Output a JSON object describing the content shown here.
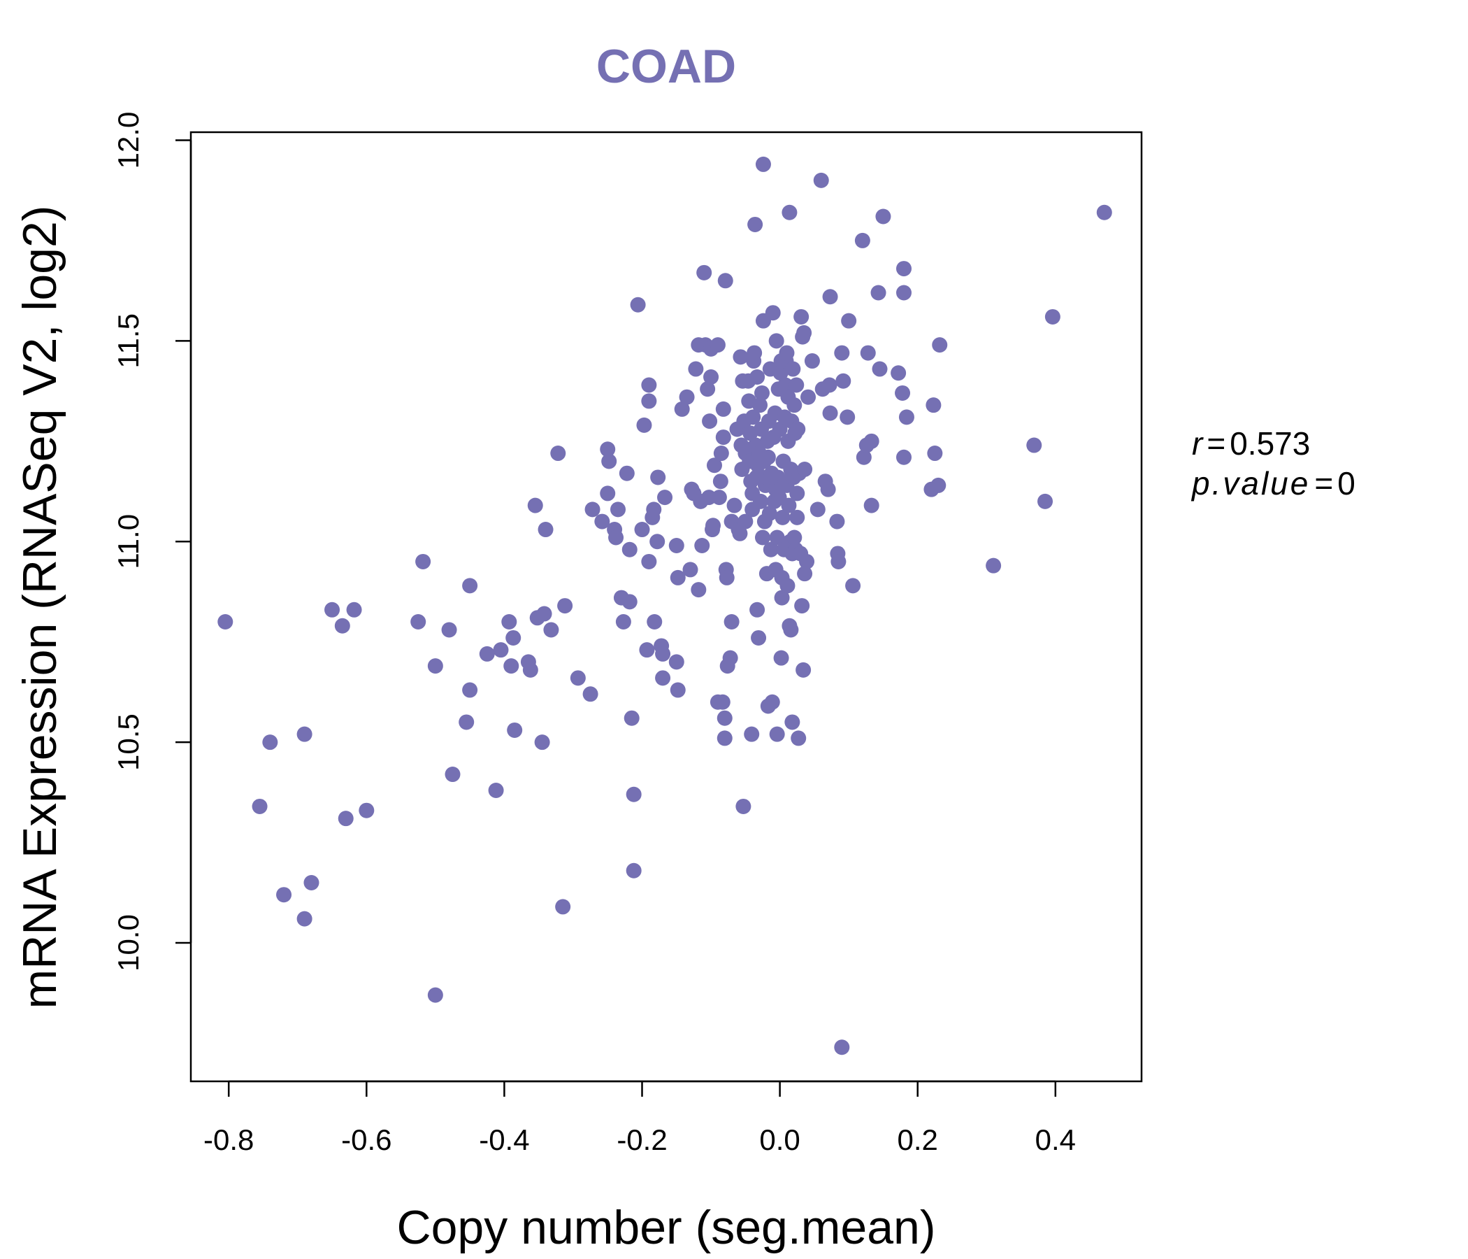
{
  "chart_data": {
    "type": "scatter",
    "title": "COAD",
    "xlabel": "Copy number (seg.mean)",
    "ylabel": "mRNA Expression (RNASeq V2, log2)",
    "xlim": [
      -0.855,
      0.525
    ],
    "ylim": [
      9.655,
      12.02
    ],
    "x_ticks": [
      -0.8,
      -0.6,
      -0.4,
      -0.2,
      0.0,
      0.2,
      0.4
    ],
    "x_tick_labels": [
      "-0.8",
      "-0.6",
      "-0.4",
      "-0.2",
      "0.0",
      "0.2",
      "0.4"
    ],
    "y_ticks": [
      10.0,
      10.5,
      11.0,
      11.5,
      12.0
    ],
    "y_tick_labels": [
      "10.0",
      "10.5",
      "11.0",
      "11.5",
      "12.0"
    ],
    "point_color": "#7570b3",
    "annotation": {
      "r_symbol": "r",
      "r_value": "0.573",
      "p_symbol": "p.value",
      "p_value": "0",
      "equals": "="
    },
    "points": [
      [
        -0.805,
        10.8
      ],
      [
        -0.755,
        10.34
      ],
      [
        -0.74,
        10.5
      ],
      [
        -0.72,
        10.12
      ],
      [
        -0.69,
        10.52
      ],
      [
        -0.69,
        10.06
      ],
      [
        -0.68,
        10.15
      ],
      [
        -0.65,
        10.83
      ],
      [
        -0.635,
        10.79
      ],
      [
        -0.63,
        10.31
      ],
      [
        -0.618,
        10.83
      ],
      [
        -0.6,
        10.33
      ],
      [
        -0.525,
        10.8
      ],
      [
        -0.518,
        10.95
      ],
      [
        -0.5,
        10.69
      ],
      [
        -0.5,
        9.87
      ],
      [
        -0.48,
        10.78
      ],
      [
        -0.475,
        10.42
      ],
      [
        -0.455,
        10.55
      ],
      [
        -0.45,
        10.63
      ],
      [
        -0.45,
        10.89
      ],
      [
        -0.425,
        10.72
      ],
      [
        -0.412,
        10.38
      ],
      [
        -0.405,
        10.73
      ],
      [
        -0.393,
        10.8
      ],
      [
        -0.39,
        10.69
      ],
      [
        -0.387,
        10.76
      ],
      [
        -0.385,
        10.53
      ],
      [
        -0.365,
        10.7
      ],
      [
        -0.362,
        10.68
      ],
      [
        -0.355,
        11.09
      ],
      [
        -0.352,
        10.81
      ],
      [
        -0.345,
        10.5
      ],
      [
        -0.342,
        10.82
      ],
      [
        -0.34,
        11.03
      ],
      [
        -0.332,
        10.78
      ],
      [
        -0.322,
        11.22
      ],
      [
        -0.315,
        10.09
      ],
      [
        -0.312,
        10.84
      ],
      [
        -0.293,
        10.66
      ],
      [
        -0.275,
        10.62
      ],
      [
        -0.272,
        11.08
      ],
      [
        -0.258,
        11.05
      ],
      [
        -0.25,
        11.23
      ],
      [
        -0.25,
        11.12
      ],
      [
        -0.248,
        11.2
      ],
      [
        -0.24,
        11.03
      ],
      [
        -0.238,
        11.01
      ],
      [
        -0.235,
        11.08
      ],
      [
        -0.23,
        10.86
      ],
      [
        -0.227,
        10.8
      ],
      [
        -0.222,
        11.17
      ],
      [
        -0.218,
        10.98
      ],
      [
        -0.218,
        10.85
      ],
      [
        -0.215,
        10.56
      ],
      [
        -0.212,
        10.37
      ],
      [
        -0.212,
        10.18
      ],
      [
        -0.206,
        11.59
      ],
      [
        -0.2,
        11.03
      ],
      [
        -0.197,
        11.29
      ],
      [
        -0.193,
        10.73
      ],
      [
        -0.19,
        11.39
      ],
      [
        -0.19,
        11.35
      ],
      [
        -0.19,
        10.95
      ],
      [
        -0.185,
        11.06
      ],
      [
        -0.183,
        11.08
      ],
      [
        -0.182,
        10.8
      ],
      [
        -0.178,
        11.0
      ],
      [
        -0.177,
        11.16
      ],
      [
        -0.172,
        10.74
      ],
      [
        -0.17,
        10.66
      ],
      [
        -0.17,
        10.72
      ],
      [
        -0.167,
        11.11
      ],
      [
        -0.15,
        10.7
      ],
      [
        -0.15,
        10.99
      ],
      [
        -0.148,
        10.63
      ],
      [
        -0.148,
        10.91
      ],
      [
        -0.142,
        11.33
      ],
      [
        -0.135,
        11.36
      ],
      [
        -0.13,
        10.93
      ],
      [
        -0.128,
        11.13
      ],
      [
        -0.125,
        11.12
      ],
      [
        -0.122,
        11.43
      ],
      [
        -0.118,
        11.49
      ],
      [
        -0.118,
        10.88
      ],
      [
        -0.115,
        11.1
      ],
      [
        -0.113,
        10.99
      ],
      [
        -0.11,
        11.67
      ],
      [
        -0.108,
        11.49
      ],
      [
        -0.105,
        11.38
      ],
      [
        -0.103,
        11.11
      ],
      [
        -0.102,
        11.3
      ],
      [
        -0.1,
        11.41
      ],
      [
        -0.1,
        11.48
      ],
      [
        -0.098,
        11.03
      ],
      [
        -0.097,
        11.04
      ],
      [
        -0.095,
        11.19
      ],
      [
        -0.09,
        10.6
      ],
      [
        -0.09,
        11.49
      ],
      [
        -0.088,
        11.11
      ],
      [
        -0.086,
        11.15
      ],
      [
        -0.085,
        11.22
      ],
      [
        -0.083,
        10.6
      ],
      [
        -0.082,
        11.33
      ],
      [
        -0.082,
        11.26
      ],
      [
        -0.08,
        10.56
      ],
      [
        -0.08,
        10.51
      ],
      [
        -0.079,
        11.65
      ],
      [
        -0.078,
        10.93
      ],
      [
        -0.077,
        10.91
      ],
      [
        -0.076,
        10.69
      ],
      [
        -0.072,
        10.71
      ],
      [
        -0.07,
        10.8
      ],
      [
        -0.07,
        11.05
      ],
      [
        -0.066,
        11.09
      ],
      [
        -0.062,
        11.28
      ],
      [
        -0.06,
        11.03
      ],
      [
        -0.058,
        11.02
      ],
      [
        -0.057,
        11.46
      ],
      [
        -0.056,
        11.24
      ],
      [
        -0.055,
        11.18
      ],
      [
        -0.054,
        11.4
      ],
      [
        -0.053,
        10.34
      ],
      [
        -0.052,
        11.3
      ],
      [
        -0.05,
        11.22
      ],
      [
        -0.05,
        11.05
      ],
      [
        -0.048,
        11.23
      ],
      [
        -0.046,
        11.4
      ],
      [
        -0.045,
        11.35
      ],
      [
        -0.044,
        11.2
      ],
      [
        -0.043,
        11.27
      ],
      [
        -0.042,
        11.15
      ],
      [
        -0.041,
        10.52
      ],
      [
        -0.04,
        11.12
      ],
      [
        -0.04,
        11.08
      ],
      [
        -0.039,
        11.31
      ],
      [
        -0.038,
        11.45
      ],
      [
        -0.037,
        11.47
      ],
      [
        -0.036,
        11.79
      ],
      [
        -0.035,
        11.24
      ],
      [
        -0.034,
        11.16
      ],
      [
        -0.033,
        11.41
      ],
      [
        -0.033,
        10.83
      ],
      [
        -0.032,
        11.19
      ],
      [
        -0.031,
        10.76
      ],
      [
        -0.03,
        11.22
      ],
      [
        -0.029,
        11.34
      ],
      [
        -0.028,
        11.1
      ],
      [
        -0.027,
        11.28
      ],
      [
        -0.026,
        11.37
      ],
      [
        -0.025,
        11.01
      ],
      [
        -0.024,
        11.55
      ],
      [
        -0.024,
        11.94
      ],
      [
        -0.023,
        11.2
      ],
      [
        -0.022,
        11.05
      ],
      [
        -0.021,
        11.14
      ],
      [
        -0.02,
        11.16
      ],
      [
        -0.019,
        10.92
      ],
      [
        -0.018,
        11.25
      ],
      [
        -0.017,
        11.21
      ],
      [
        -0.017,
        10.59
      ],
      [
        -0.016,
        11.3
      ],
      [
        -0.015,
        11.07
      ],
      [
        -0.014,
        11.43
      ],
      [
        -0.013,
        10.98
      ],
      [
        -0.012,
        11.17
      ],
      [
        -0.011,
        10.6
      ],
      [
        -0.01,
        11.57
      ],
      [
        -0.009,
        11.26
      ],
      [
        -0.008,
        11.1
      ],
      [
        -0.007,
        11.32
      ],
      [
        -0.006,
        10.93
      ],
      [
        -0.006,
        11.13
      ],
      [
        -0.005,
        11.5
      ],
      [
        -0.004,
        11.01
      ],
      [
        -0.004,
        10.52
      ],
      [
        -0.003,
        11.16
      ],
      [
        -0.002,
        11.38
      ],
      [
        -0.001,
        11.11
      ],
      [
        0.0,
        11.28
      ],
      [
        0.001,
        11.42
      ],
      [
        0.002,
        10.71
      ],
      [
        0.002,
        11.45
      ],
      [
        0.003,
        10.91
      ],
      [
        0.003,
        10.86
      ],
      [
        0.004,
        11.06
      ],
      [
        0.005,
        11.2
      ],
      [
        0.006,
        10.98
      ],
      [
        0.007,
        11.31
      ],
      [
        0.008,
        11.15
      ],
      [
        0.008,
        11.39
      ],
      [
        0.009,
        11.45
      ],
      [
        0.01,
        11.14
      ],
      [
        0.01,
        11.47
      ],
      [
        0.011,
        10.89
      ],
      [
        0.012,
        11.25
      ],
      [
        0.012,
        11.36
      ],
      [
        0.013,
        11.09
      ],
      [
        0.014,
        11.82
      ],
      [
        0.014,
        10.79
      ],
      [
        0.015,
        11.0
      ],
      [
        0.016,
        11.18
      ],
      [
        0.016,
        10.78
      ],
      [
        0.017,
        11.3
      ],
      [
        0.018,
        10.97
      ],
      [
        0.018,
        10.55
      ],
      [
        0.019,
        11.43
      ],
      [
        0.02,
        11.16
      ],
      [
        0.021,
        11.34
      ],
      [
        0.021,
        11.01
      ],
      [
        0.022,
        11.27
      ],
      [
        0.023,
        10.98
      ],
      [
        0.024,
        11.39
      ],
      [
        0.025,
        11.12
      ],
      [
        0.025,
        11.06
      ],
      [
        0.026,
        11.28
      ],
      [
        0.027,
        10.51
      ],
      [
        0.028,
        11.17
      ],
      [
        0.03,
        10.97
      ],
      [
        0.031,
        11.56
      ],
      [
        0.032,
        10.84
      ],
      [
        0.033,
        11.51
      ],
      [
        0.034,
        10.68
      ],
      [
        0.035,
        11.52
      ],
      [
        0.036,
        11.18
      ],
      [
        0.036,
        10.92
      ],
      [
        0.039,
        10.95
      ],
      [
        0.041,
        11.36
      ],
      [
        0.047,
        11.45
      ],
      [
        0.055,
        11.08
      ],
      [
        0.06,
        11.9
      ],
      [
        0.062,
        11.38
      ],
      [
        0.066,
        11.15
      ],
      [
        0.07,
        11.13
      ],
      [
        0.072,
        11.39
      ],
      [
        0.073,
        11.32
      ],
      [
        0.073,
        11.61
      ],
      [
        0.083,
        11.05
      ],
      [
        0.084,
        10.97
      ],
      [
        0.085,
        10.95
      ],
      [
        0.09,
        11.47
      ],
      [
        0.092,
        11.4
      ],
      [
        0.09,
        9.74
      ],
      [
        0.098,
        11.31
      ],
      [
        0.1,
        11.55
      ],
      [
        0.106,
        10.89
      ],
      [
        0.12,
        11.75
      ],
      [
        0.122,
        11.21
      ],
      [
        0.126,
        11.24
      ],
      [
        0.128,
        11.47
      ],
      [
        0.133,
        11.25
      ],
      [
        0.133,
        11.09
      ],
      [
        0.143,
        11.62
      ],
      [
        0.145,
        11.43
      ],
      [
        0.15,
        11.81
      ],
      [
        0.172,
        11.42
      ],
      [
        0.178,
        11.37
      ],
      [
        0.18,
        11.68
      ],
      [
        0.18,
        11.62
      ],
      [
        0.18,
        11.21
      ],
      [
        0.184,
        11.31
      ],
      [
        0.22,
        11.13
      ],
      [
        0.223,
        11.34
      ],
      [
        0.225,
        11.22
      ],
      [
        0.23,
        11.14
      ],
      [
        0.232,
        11.49
      ],
      [
        0.31,
        10.94
      ],
      [
        0.369,
        11.24
      ],
      [
        0.385,
        11.1
      ],
      [
        0.396,
        11.56
      ],
      [
        0.471,
        11.82
      ]
    ]
  }
}
